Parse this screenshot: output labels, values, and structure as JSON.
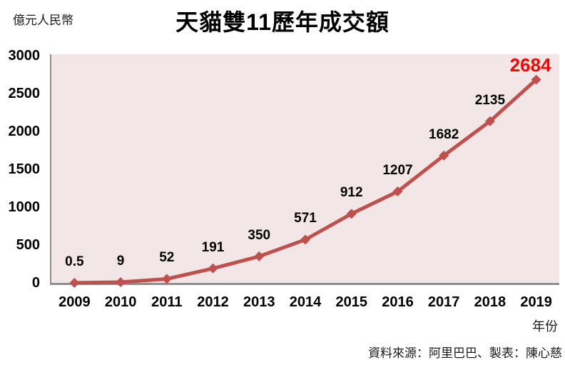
{
  "chart_data": {
    "type": "line",
    "title": "天貓雙11歷年成交額",
    "unit_label": "億元人民幣",
    "xlabel": "年份",
    "ylabel": "",
    "categories": [
      "2009",
      "2010",
      "2011",
      "2012",
      "2013",
      "2014",
      "2015",
      "2016",
      "2017",
      "2018",
      "2019"
    ],
    "series": [
      {
        "name": "成交額",
        "values": [
          0.5,
          9,
          52,
          191,
          350,
          571,
          912,
          1207,
          1682,
          2135,
          2684
        ]
      }
    ],
    "data_labels": [
      "0.5",
      "9",
      "52",
      "191",
      "350",
      "571",
      "912",
      "1207",
      "1682",
      "2135",
      "2684"
    ],
    "ylim": [
      0,
      3000
    ],
    "yticks": [
      0,
      500,
      1000,
      1500,
      2000,
      2500,
      3000
    ],
    "grid": false,
    "legend": "none",
    "marker": "diamond",
    "colors": {
      "line": "#C0504D",
      "marker": "#C0504D",
      "plot_bg": "#F2E7E6",
      "axis": "#8E8E8E",
      "data_label": "#000000",
      "last_data_label": "#FF0000",
      "title": "#000000"
    },
    "source": "資料來源：阿里巴巴、製表：陳心慈"
  }
}
